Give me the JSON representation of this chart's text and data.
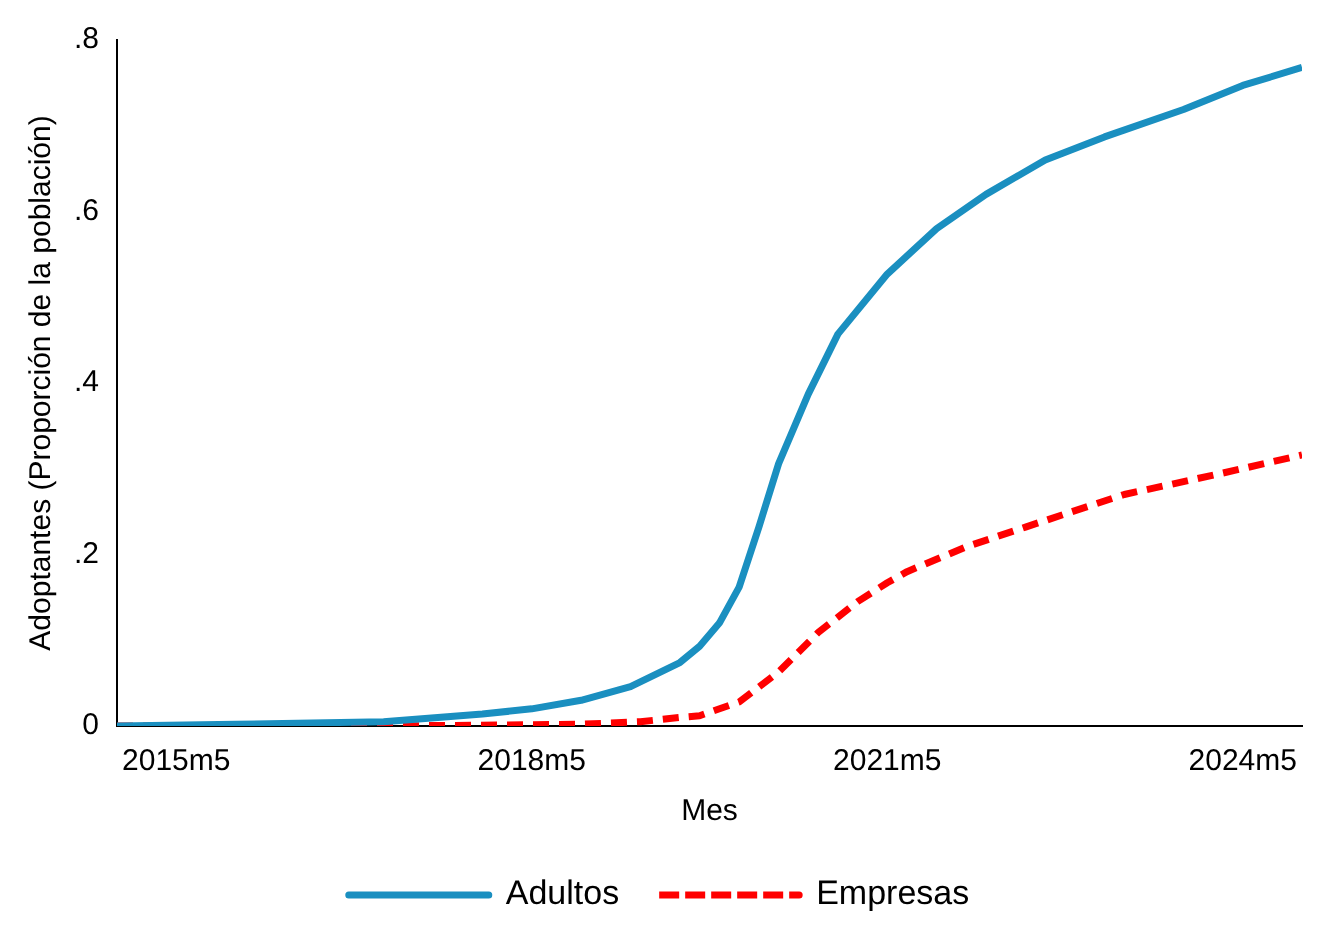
{
  "chart_data": {
    "type": "line",
    "xlabel": "Mes",
    "ylabel": "Adoptantes (Proporción de la población)",
    "xlim": [
      "2014-11",
      "2024-11"
    ],
    "xticks": [
      {
        "value": "2015-05",
        "label": "2015m5"
      },
      {
        "value": "2018-05",
        "label": "2018m5"
      },
      {
        "value": "2021-05",
        "label": "2021m5"
      },
      {
        "value": "2024-05",
        "label": "2024m5"
      }
    ],
    "ylim": [
      0,
      0.8
    ],
    "yticks": [
      {
        "value": 0,
        "label": "0"
      },
      {
        "value": 0.2,
        "label": ".2"
      },
      {
        "value": 0.4,
        "label": ".4"
      },
      {
        "value": 0.6,
        "label": ".6"
      },
      {
        "value": 0.8,
        "label": ".8"
      }
    ],
    "legend": "bottom",
    "series": [
      {
        "name": "Adultos",
        "color": "#1a8fc0",
        "line_style": "solid",
        "x": [
          "2014-11",
          "2015-11",
          "2017-02",
          "2017-12",
          "2018-05",
          "2018-10",
          "2019-03",
          "2019-08",
          "2019-10",
          "2019-12",
          "2020-02",
          "2020-04",
          "2020-06",
          "2020-09",
          "2020-12",
          "2021-05",
          "2021-10",
          "2022-03",
          "2022-09",
          "2023-03",
          "2023-11",
          "2024-05",
          "2024-11"
        ],
        "values": [
          0,
          0.002,
          0.005,
          0.014,
          0.02,
          0.03,
          0.046,
          0.074,
          0.093,
          0.12,
          0.162,
          0.232,
          0.306,
          0.387,
          0.457,
          0.527,
          0.58,
          0.62,
          0.66,
          0.687,
          0.719,
          0.747,
          0.768
        ]
      },
      {
        "name": "Empresas",
        "color": "#ff0000",
        "line_style": "dashed",
        "x": [
          "2014-11",
          "2017-02",
          "2018-10",
          "2019-04",
          "2019-08",
          "2019-10",
          "2020-02",
          "2020-06",
          "2020-10",
          "2021-02",
          "2021-05",
          "2021-07",
          "2022-01",
          "2022-07",
          "2023-05",
          "2024-03",
          "2024-11"
        ],
        "values": [
          0,
          0,
          0.002,
          0.005,
          0.01,
          0.012,
          0.028,
          0.063,
          0.109,
          0.145,
          0.167,
          0.18,
          0.209,
          0.232,
          0.27,
          0.295,
          0.316
        ]
      }
    ]
  }
}
